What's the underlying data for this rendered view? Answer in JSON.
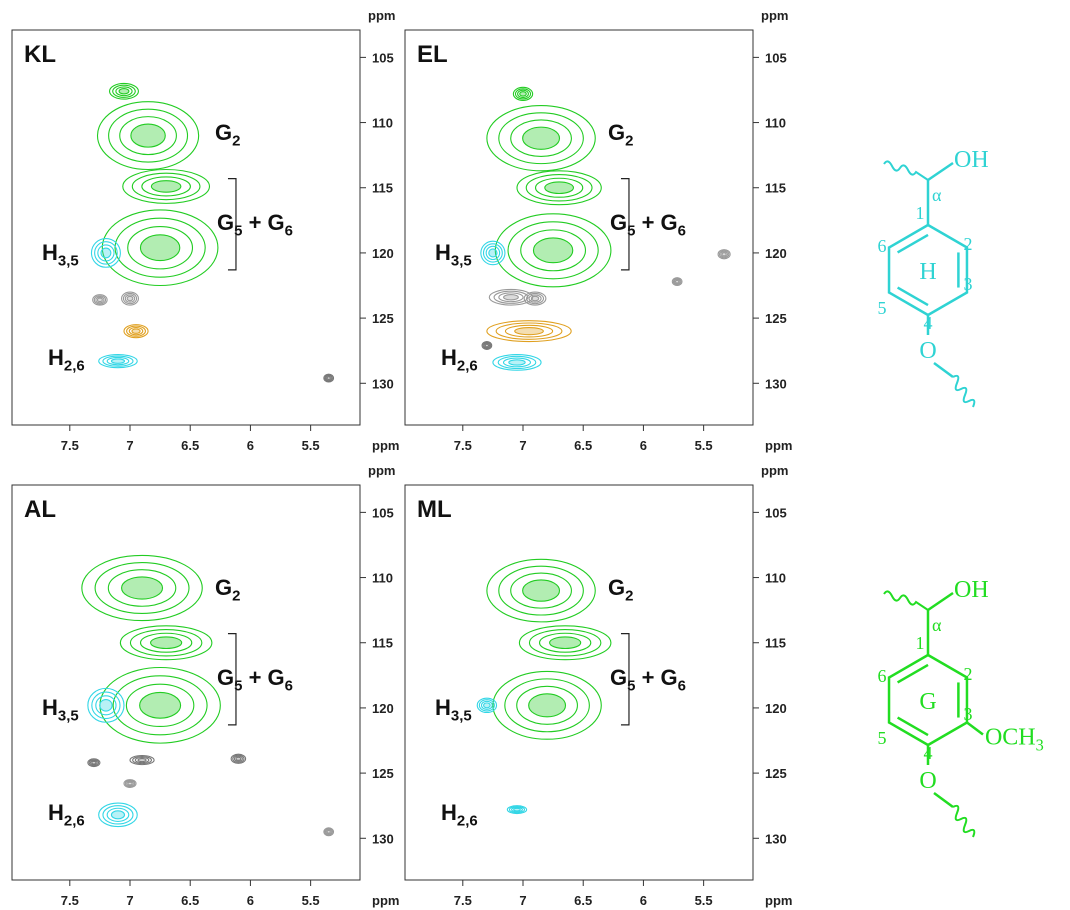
{
  "chart_data": [
    {
      "type": "contour",
      "title": "KL",
      "xlabel": "ppm",
      "ylabel": "ppm",
      "xlim": [
        7.98,
        5.09
      ],
      "ylim": [
        102.9,
        133.2
      ],
      "xticks": [
        7.5,
        7.0,
        6.5,
        6.0,
        5.5
      ],
      "yticks": [
        105,
        110,
        115,
        120,
        125,
        130
      ],
      "annotations": [
        [
          "G",
          "2"
        ],
        [
          "G",
          "5",
          " + G",
          "6"
        ],
        [
          "H",
          "3,5"
        ],
        [
          "H",
          "2,6"
        ]
      ],
      "peaks": [
        {
          "x": 7.05,
          "y": 107.6,
          "rx": 0.12,
          "ry": 0.6,
          "color": "#22cc22"
        },
        {
          "x": 6.85,
          "y": 111,
          "rx": 0.42,
          "ry": 2.6,
          "color": "#22cc22"
        },
        {
          "x": 6.7,
          "y": 114.9,
          "rx": 0.36,
          "ry": 1.3,
          "color": "#22cc22"
        },
        {
          "x": 6.75,
          "y": 119.6,
          "rx": 0.48,
          "ry": 2.9,
          "color": "#22cc22"
        },
        {
          "x": 7.2,
          "y": 120,
          "rx": 0.12,
          "ry": 1.1,
          "color": "#33d6e6"
        },
        {
          "x": 7.25,
          "y": 123.6,
          "rx": 0.06,
          "ry": 0.4,
          "color": "#999999"
        },
        {
          "x": 7.0,
          "y": 123.5,
          "rx": 0.07,
          "ry": 0.5,
          "color": "#999999"
        },
        {
          "x": 6.95,
          "y": 126,
          "rx": 0.1,
          "ry": 0.5,
          "color": "#e0a020"
        },
        {
          "x": 7.1,
          "y": 128.3,
          "rx": 0.16,
          "ry": 0.5,
          "color": "#33d6e6"
        },
        {
          "x": 5.35,
          "y": 129.6,
          "rx": 0.04,
          "ry": 0.3,
          "color": "#777777"
        }
      ]
    },
    {
      "type": "contour",
      "title": "EL",
      "xlabel": "ppm",
      "ylabel": "ppm",
      "xlim": [
        7.98,
        5.09
      ],
      "ylim": [
        102.9,
        133.2
      ],
      "xticks": [
        7.5,
        7.0,
        6.5,
        6.0,
        5.5
      ],
      "yticks": [
        105,
        110,
        115,
        120,
        125,
        130
      ],
      "annotations": [
        [
          "G",
          "2"
        ],
        [
          "G",
          "5",
          " + G",
          "6"
        ],
        [
          "H",
          "3,5"
        ],
        [
          "H",
          "2,6"
        ]
      ],
      "peaks": [
        {
          "x": 7.0,
          "y": 107.8,
          "rx": 0.08,
          "ry": 0.5,
          "color": "#22cc22"
        },
        {
          "x": 6.85,
          "y": 111.2,
          "rx": 0.45,
          "ry": 2.5,
          "color": "#22cc22"
        },
        {
          "x": 6.7,
          "y": 115,
          "rx": 0.35,
          "ry": 1.3,
          "color": "#22cc22"
        },
        {
          "x": 6.75,
          "y": 119.8,
          "rx": 0.48,
          "ry": 2.8,
          "color": "#22cc22"
        },
        {
          "x": 7.25,
          "y": 120,
          "rx": 0.1,
          "ry": 0.9,
          "color": "#33d6e6"
        },
        {
          "x": 7.1,
          "y": 123.4,
          "rx": 0.18,
          "ry": 0.6,
          "color": "#999999"
        },
        {
          "x": 6.9,
          "y": 123.5,
          "rx": 0.09,
          "ry": 0.5,
          "color": "#999999"
        },
        {
          "x": 6.95,
          "y": 126,
          "rx": 0.35,
          "ry": 0.8,
          "color": "#e0a020"
        },
        {
          "x": 7.3,
          "y": 127.1,
          "rx": 0.04,
          "ry": 0.3,
          "color": "#777777"
        },
        {
          "x": 7.05,
          "y": 128.4,
          "rx": 0.2,
          "ry": 0.6,
          "color": "#33d6e6"
        },
        {
          "x": 5.72,
          "y": 122.2,
          "rx": 0.04,
          "ry": 0.3,
          "color": "#999999"
        },
        {
          "x": 5.33,
          "y": 120.1,
          "rx": 0.05,
          "ry": 0.35,
          "color": "#999999"
        }
      ]
    },
    {
      "type": "contour",
      "title": "AL",
      "xlabel": "ppm",
      "ylabel": "ppm",
      "xlim": [
        7.98,
        5.09
      ],
      "ylim": [
        102.9,
        133.2
      ],
      "xticks": [
        7.5,
        7.0,
        6.5,
        6.0,
        5.5
      ],
      "yticks": [
        105,
        110,
        115,
        120,
        125,
        130
      ],
      "annotations": [
        [
          "G",
          "2"
        ],
        [
          "G",
          "5",
          " + G",
          "6"
        ],
        [
          "H",
          "3,5"
        ],
        [
          "H",
          "2,6"
        ]
      ],
      "peaks": [
        {
          "x": 6.9,
          "y": 110.8,
          "rx": 0.5,
          "ry": 2.5,
          "color": "#22cc22"
        },
        {
          "x": 6.7,
          "y": 115,
          "rx": 0.38,
          "ry": 1.3,
          "color": "#22cc22"
        },
        {
          "x": 6.75,
          "y": 119.8,
          "rx": 0.5,
          "ry": 2.9,
          "color": "#22cc22"
        },
        {
          "x": 7.2,
          "y": 119.8,
          "rx": 0.15,
          "ry": 1.3,
          "color": "#33d6e6"
        },
        {
          "x": 7.3,
          "y": 124.2,
          "rx": 0.05,
          "ry": 0.3,
          "color": "#777777"
        },
        {
          "x": 6.9,
          "y": 124,
          "rx": 0.1,
          "ry": 0.35,
          "color": "#777777"
        },
        {
          "x": 6.1,
          "y": 123.9,
          "rx": 0.06,
          "ry": 0.35,
          "color": "#777777"
        },
        {
          "x": 7.0,
          "y": 125.8,
          "rx": 0.05,
          "ry": 0.3,
          "color": "#999999"
        },
        {
          "x": 7.1,
          "y": 128.2,
          "rx": 0.16,
          "ry": 0.9,
          "color": "#33d6e6"
        },
        {
          "x": 5.35,
          "y": 129.5,
          "rx": 0.04,
          "ry": 0.3,
          "color": "#999999"
        }
      ]
    },
    {
      "type": "contour",
      "title": "ML",
      "xlabel": "ppm",
      "ylabel": "ppm",
      "xlim": [
        7.98,
        5.09
      ],
      "ylim": [
        102.9,
        133.2
      ],
      "xticks": [
        7.5,
        7.0,
        6.5,
        6.0,
        5.5
      ],
      "yticks": [
        105,
        110,
        115,
        120,
        125,
        130
      ],
      "annotations": [
        [
          "G",
          "2"
        ],
        [
          "G",
          "5",
          " + G",
          "6"
        ],
        [
          "H",
          "3,5"
        ],
        [
          "H",
          "2,6"
        ]
      ],
      "peaks": [
        {
          "x": 6.85,
          "y": 111,
          "rx": 0.45,
          "ry": 2.4,
          "color": "#22cc22"
        },
        {
          "x": 6.65,
          "y": 115,
          "rx": 0.38,
          "ry": 1.3,
          "color": "#22cc22"
        },
        {
          "x": 6.8,
          "y": 119.8,
          "rx": 0.45,
          "ry": 2.6,
          "color": "#22cc22"
        },
        {
          "x": 7.3,
          "y": 119.8,
          "rx": 0.08,
          "ry": 0.55,
          "color": "#33d6e6"
        },
        {
          "x": 7.05,
          "y": 127.8,
          "rx": 0.08,
          "ry": 0.3,
          "color": "#33d6e6"
        }
      ]
    }
  ],
  "structures": [
    {
      "color": "#2fd3d3",
      "ring": "H",
      "hydroxyl": "OH",
      "alpha": "α",
      "positions": [
        "1",
        "2",
        "3",
        "4",
        "5",
        "6"
      ],
      "oxygen": "O"
    },
    {
      "color": "#22dd22",
      "ring": "G",
      "hydroxyl": "OH",
      "alpha": "α",
      "positions": [
        "1",
        "2",
        "3",
        "4",
        "5",
        "6"
      ],
      "oxygen": "O",
      "methoxy": [
        "OCH",
        "3"
      ]
    }
  ]
}
